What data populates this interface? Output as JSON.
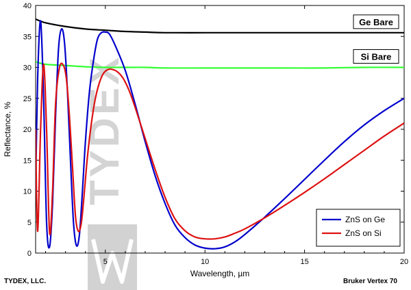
{
  "footer": {
    "left": "TYDEX, LLC.",
    "right": "Bruker Vertex 70"
  },
  "watermark": {
    "text": "TYDEX"
  },
  "chart_data": {
    "type": "line",
    "title": "",
    "xlabel": "Wavelength, µm",
    "ylabel": "Reflectance, %",
    "xlim": [
      1.5,
      20
    ],
    "ylim": [
      0,
      40
    ],
    "xticks": [
      5,
      10,
      15,
      20
    ],
    "yticks": [
      0,
      5,
      10,
      15,
      20,
      25,
      30,
      35,
      40
    ],
    "grid": false,
    "legend_position": "bottom-right",
    "series": [
      {
        "name": "Ge Bare",
        "color": "#000000",
        "label_style": "boxed-right",
        "x": [
          1.5,
          2,
          3,
          4,
          5,
          6,
          7,
          8,
          10,
          12,
          14,
          16,
          18,
          20
        ],
        "y": [
          37.8,
          37.2,
          36.6,
          36.2,
          36.0,
          35.8,
          35.7,
          35.6,
          35.6,
          35.6,
          35.6,
          35.6,
          35.6,
          35.6
        ]
      },
      {
        "name": "Si Bare",
        "color": "#33ff33",
        "label_style": "boxed-right",
        "x": [
          1.5,
          2,
          3,
          4,
          5,
          6,
          7,
          8,
          10,
          12,
          14,
          16,
          18,
          20
        ],
        "y": [
          30.9,
          30.5,
          30.3,
          30.1,
          30.0,
          30.0,
          30.0,
          29.9,
          29.9,
          29.9,
          29.9,
          29.9,
          30.0,
          30.0
        ]
      },
      {
        "name": "ZnS on Ge",
        "color": "#0000cc",
        "label_style": "legend",
        "x": [
          1.5,
          1.6,
          1.75,
          1.9,
          2.05,
          2.2,
          2.35,
          2.5,
          2.65,
          2.8,
          2.95,
          3.1,
          3.25,
          3.4,
          3.55,
          3.7,
          3.85,
          4.0,
          4.2,
          4.4,
          4.6,
          4.8,
          5.0,
          5.2,
          5.5,
          6.0,
          6.5,
          7.0,
          7.5,
          8.0,
          8.5,
          9.0,
          9.5,
          10.0,
          10.5,
          11.0,
          11.5,
          12.0,
          13.0,
          14.0,
          15.0,
          16.0,
          17.0,
          18.0,
          19.0,
          20.0
        ],
        "y": [
          10.0,
          28.0,
          37.5,
          25.0,
          5.0,
          1.0,
          8.0,
          22.0,
          33.0,
          36.2,
          34.0,
          26.0,
          15.0,
          5.0,
          1.2,
          3.0,
          10.0,
          18.0,
          26.0,
          31.0,
          34.5,
          35.6,
          35.7,
          35.4,
          33.5,
          29.5,
          24.0,
          18.0,
          12.5,
          8.0,
          4.5,
          2.5,
          1.3,
          0.8,
          0.7,
          1.0,
          1.8,
          3.0,
          5.8,
          8.8,
          11.9,
          15.0,
          18.0,
          20.7,
          23.0,
          25.0
        ]
      },
      {
        "name": "ZnS on Si",
        "color": "#dd1111",
        "label_style": "legend",
        "x": [
          1.5,
          1.6,
          1.75,
          1.9,
          2.05,
          2.2,
          2.35,
          2.5,
          2.7,
          2.9,
          3.05,
          3.2,
          3.35,
          3.5,
          3.65,
          3.8,
          3.95,
          4.1,
          4.3,
          4.5,
          4.7,
          4.9,
          5.1,
          5.3,
          5.6,
          5.9,
          6.2,
          6.5,
          7.0,
          7.5,
          8.0,
          8.5,
          9.0,
          9.5,
          10.0,
          10.5,
          11.0,
          11.5,
          12.0,
          13.0,
          14.0,
          15.0,
          16.0,
          17.0,
          18.0,
          19.0,
          20.0
        ],
        "y": [
          20.0,
          3.5,
          20.0,
          30.5,
          20.0,
          3.3,
          10.0,
          24.0,
          30.0,
          30.3,
          28.0,
          22.0,
          14.0,
          6.0,
          3.5,
          5.0,
          10.0,
          15.5,
          21.0,
          25.0,
          27.5,
          29.0,
          29.6,
          29.7,
          29.3,
          28.2,
          26.2,
          23.5,
          18.5,
          13.5,
          9.0,
          5.5,
          3.6,
          2.6,
          2.3,
          2.3,
          2.6,
          3.2,
          3.9,
          5.7,
          7.7,
          9.8,
          12.0,
          14.3,
          16.6,
          18.9,
          21.0
        ]
      }
    ]
  }
}
